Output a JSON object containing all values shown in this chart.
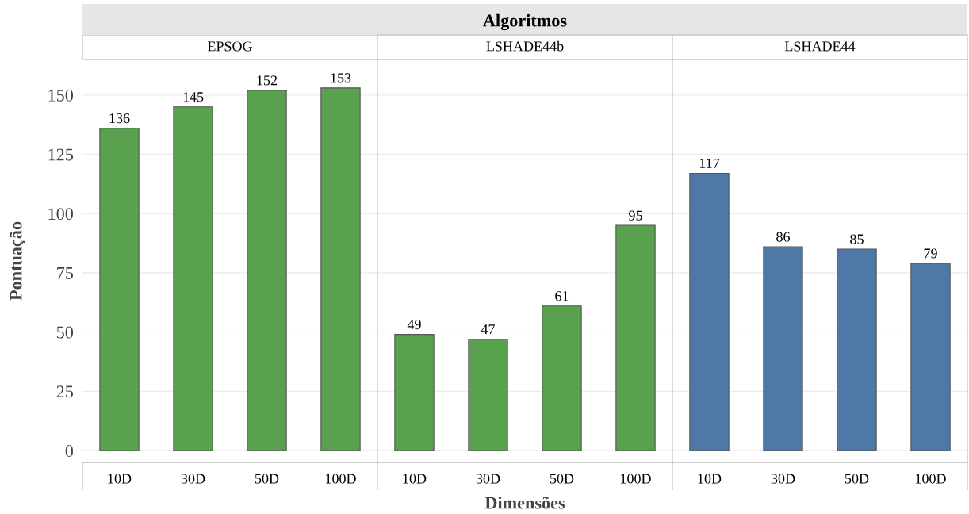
{
  "chart_data": [
    {
      "type": "bar",
      "title": "EPSOG",
      "annotations": [
        "Algoritmos"
      ],
      "ylabel": "Pontuação",
      "categories": [
        "10D",
        "30D",
        "50D",
        "100D"
      ],
      "values": [
        136,
        145,
        152,
        153
      ],
      "color": "#59a14f",
      "ylim": [
        -5,
        165
      ],
      "yticks": [
        0,
        25,
        50,
        75,
        100,
        125,
        150
      ],
      "grid": "y",
      "data_labels": true
    },
    {
      "type": "bar",
      "title": "LSHADE44b",
      "xlabel": "Dimensões",
      "categories": [
        "10D",
        "30D",
        "50D",
        "100D"
      ],
      "values": [
        49,
        47,
        61,
        95
      ],
      "color": "#59a14f",
      "ylim": [
        -5,
        165
      ],
      "yticks": [
        0,
        25,
        50,
        75,
        100,
        125,
        150
      ],
      "grid": "y",
      "data_labels": true,
      "tick_labels": "x"
    },
    {
      "type": "bar",
      "title": "LSHADE44",
      "categories": [
        "10D",
        "30D",
        "50D",
        "100D"
      ],
      "values": [
        117,
        86,
        85,
        79
      ],
      "color": "#4e79a7",
      "ylim": [
        -5,
        165
      ],
      "yticks": [
        0,
        25,
        50,
        75,
        100,
        125,
        150
      ],
      "grid": "y",
      "data_labels": true,
      "tick_labels": "x"
    }
  ]
}
